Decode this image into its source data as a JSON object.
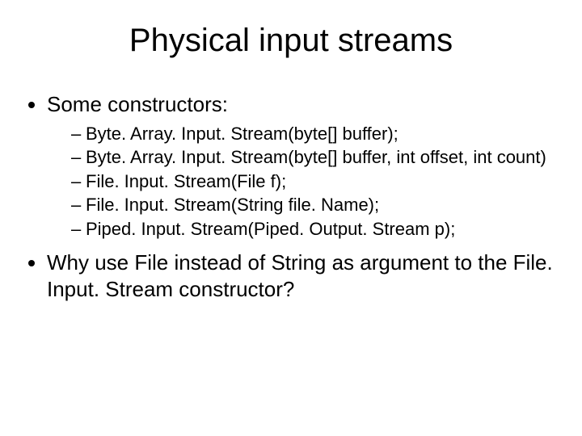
{
  "title": "Physical input streams",
  "bullets": {
    "b1": "Some constructors:",
    "sub1": "Byte. Array. Input. Stream(byte[] buffer);",
    "sub2": "Byte. Array. Input. Stream(byte[] buffer, int offset, int count)",
    "sub3": "File. Input. Stream(File f);",
    "sub4": "File. Input. Stream(String file. Name);",
    "sub5": "Piped. Input. Stream(Piped. Output. Stream p);",
    "b2": "Why use File instead of String as argument to the File. Input. Stream constructor?"
  },
  "colors": {
    "background": "#ffffff",
    "text": "#000000"
  },
  "typography": {
    "title_fontsize": 40,
    "body_fontsize": 26,
    "sub_fontsize": 22,
    "font_family": "Arial"
  }
}
